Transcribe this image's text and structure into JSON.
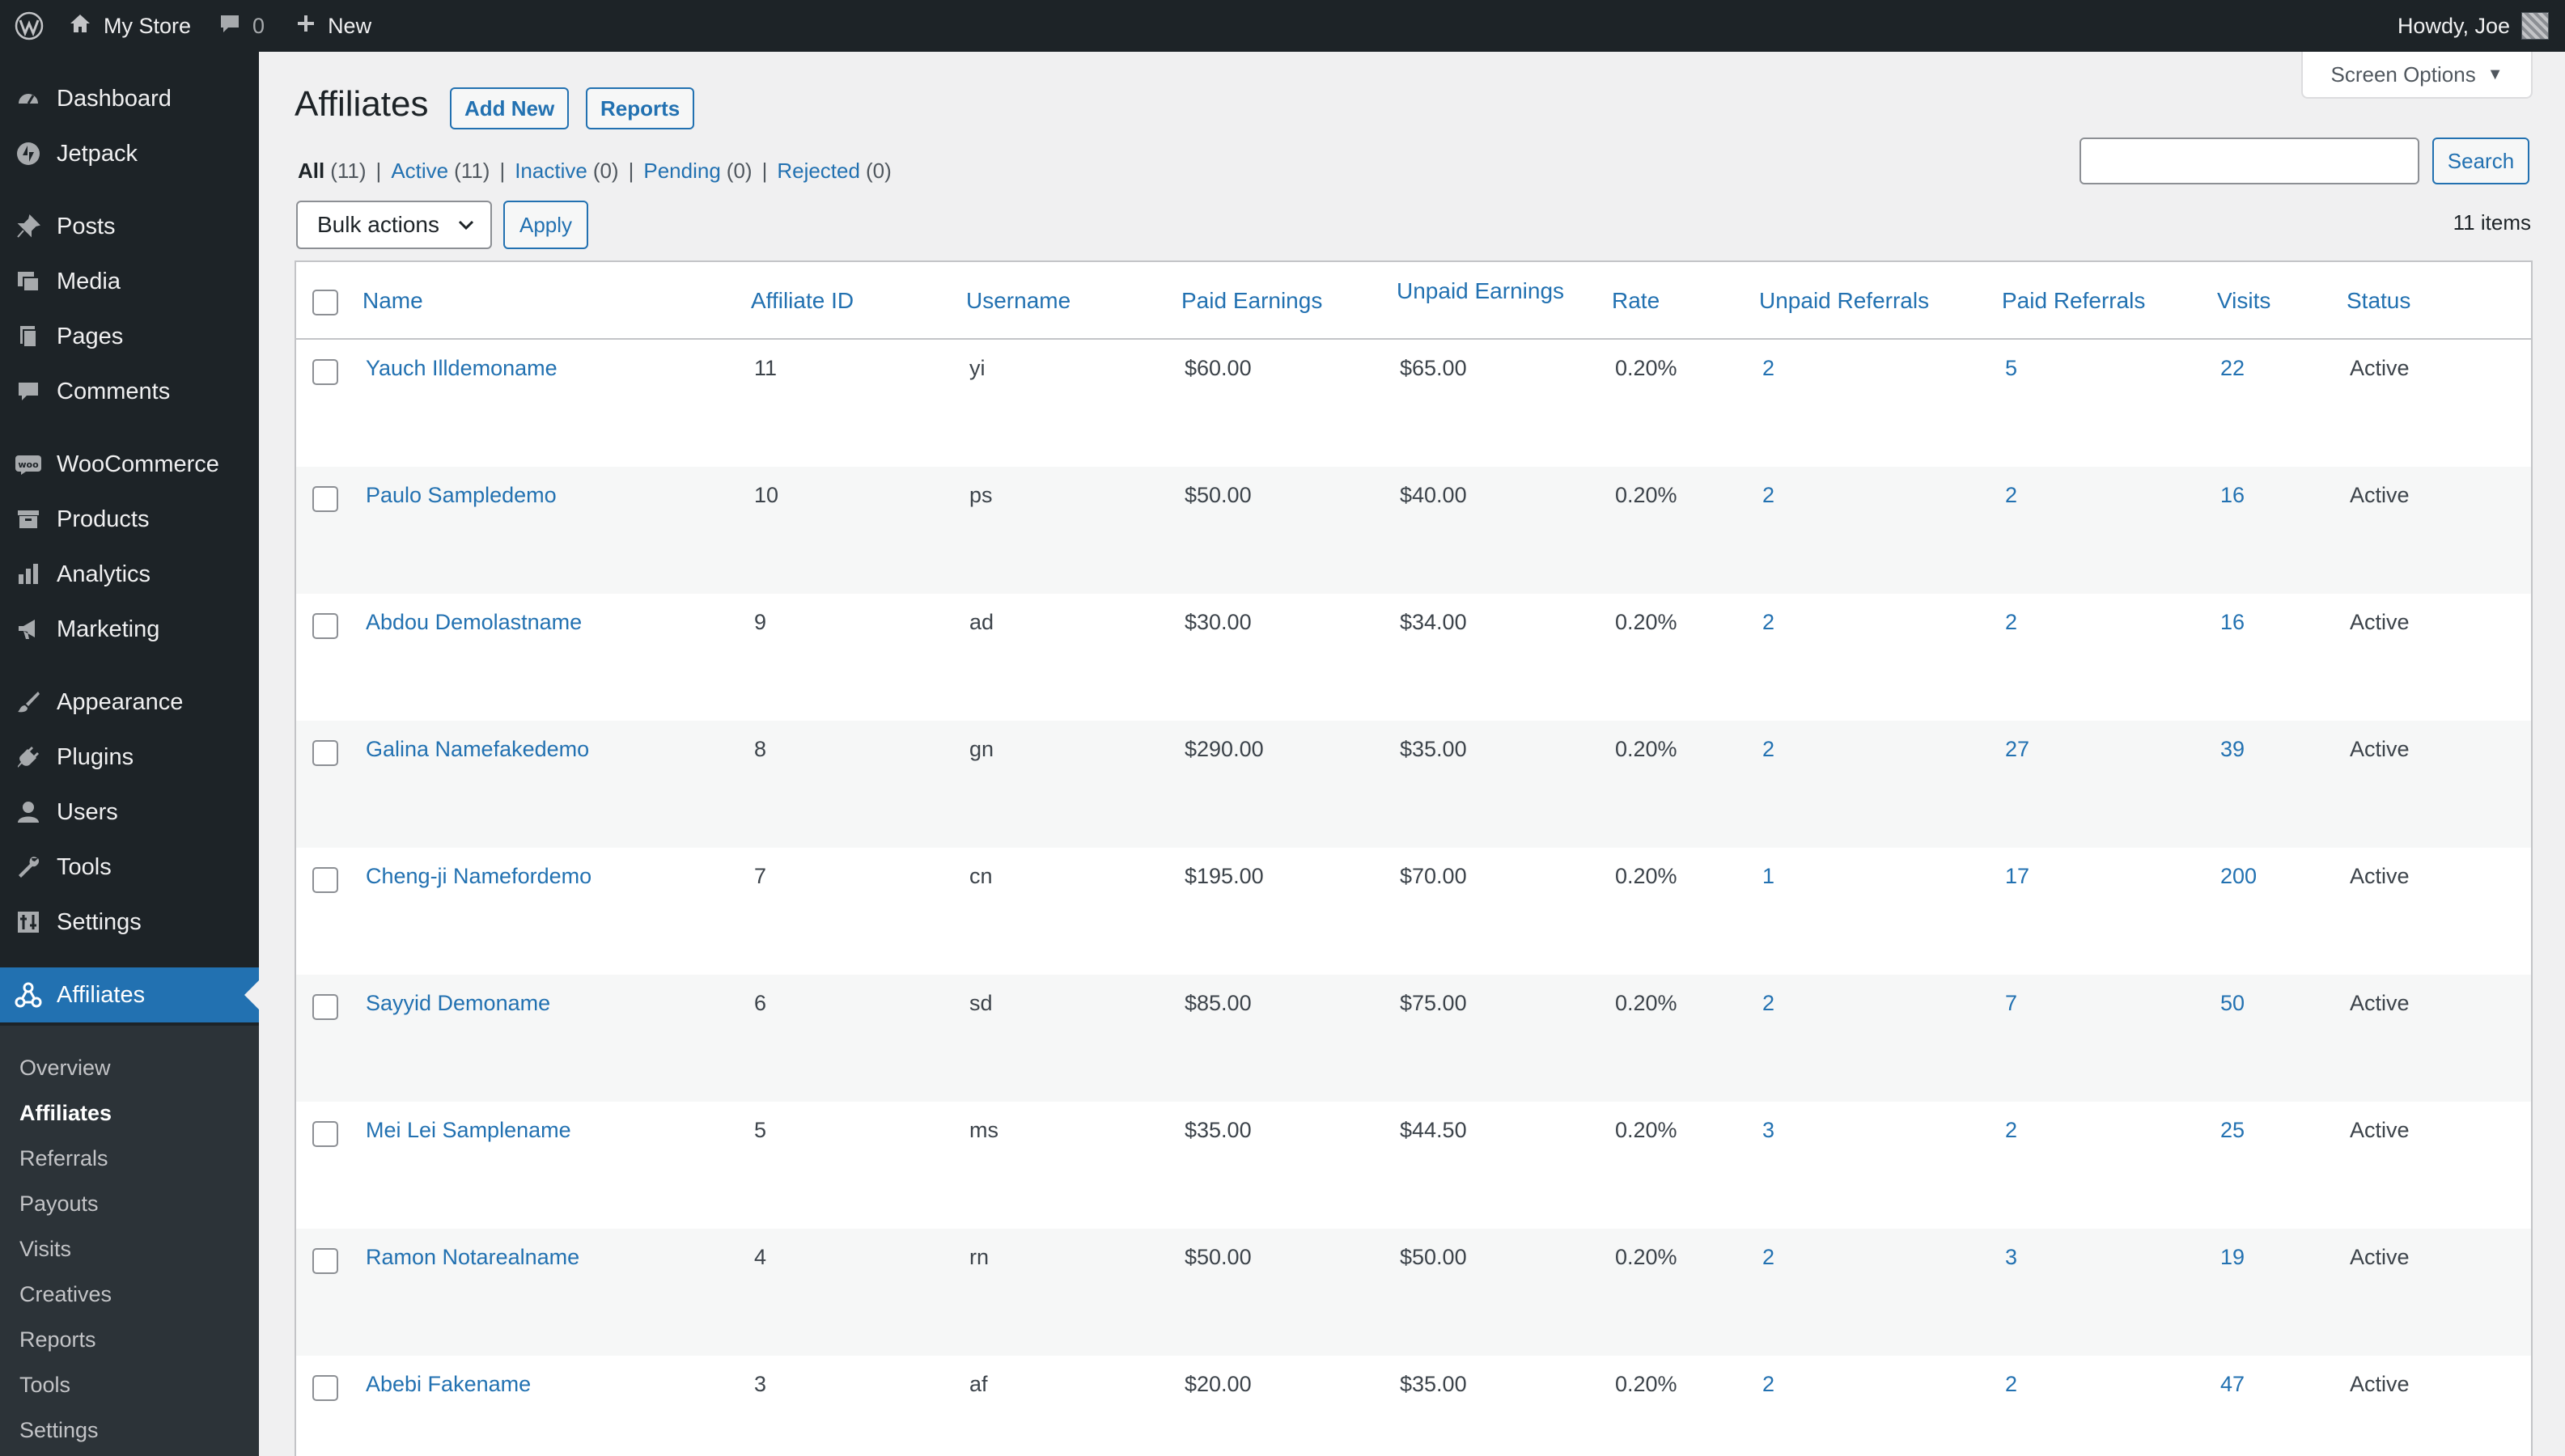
{
  "adminbar": {
    "site_name": "My Store",
    "comments_count": "0",
    "new_label": "New",
    "howdy": "Howdy, Joe"
  },
  "sidebar": {
    "items": [
      {
        "label": "Dashboard",
        "icon": "dashboard-icon"
      },
      {
        "label": "Jetpack",
        "icon": "jetpack-icon"
      },
      {
        "label": "Posts",
        "icon": "pin-icon"
      },
      {
        "label": "Media",
        "icon": "media-icon"
      },
      {
        "label": "Pages",
        "icon": "pages-icon"
      },
      {
        "label": "Comments",
        "icon": "comment-icon"
      },
      {
        "label": "WooCommerce",
        "icon": "woo-icon"
      },
      {
        "label": "Products",
        "icon": "archive-icon"
      },
      {
        "label": "Analytics",
        "icon": "bar-chart-icon"
      },
      {
        "label": "Marketing",
        "icon": "megaphone-icon"
      },
      {
        "label": "Appearance",
        "icon": "brush-icon"
      },
      {
        "label": "Plugins",
        "icon": "plug-icon"
      },
      {
        "label": "Users",
        "icon": "user-icon"
      },
      {
        "label": "Tools",
        "icon": "wrench-icon"
      },
      {
        "label": "Settings",
        "icon": "settings-icon"
      },
      {
        "label": "Affiliates",
        "icon": "affiliates-icon"
      }
    ],
    "submenu": [
      "Overview",
      "Affiliates",
      "Referrals",
      "Payouts",
      "Visits",
      "Creatives",
      "Reports",
      "Tools",
      "Settings"
    ]
  },
  "page": {
    "title": "Affiliates",
    "add_new": "Add New",
    "reports": "Reports",
    "screen_options": "Screen Options",
    "filters": [
      {
        "label": "All",
        "count": "(11)"
      },
      {
        "label": "Active",
        "count": "(11)"
      },
      {
        "label": "Inactive",
        "count": "(0)"
      },
      {
        "label": "Pending",
        "count": "(0)"
      },
      {
        "label": "Rejected",
        "count": "(0)"
      }
    ],
    "search_value": "",
    "search_button": "Search",
    "bulk_actions": "Bulk actions",
    "apply": "Apply",
    "items_count": "11 items"
  },
  "table": {
    "columns": [
      "Name",
      "Affiliate ID",
      "Username",
      "Paid Earnings",
      "Unpaid Earnings",
      "Rate",
      "Unpaid Referrals",
      "Paid Referrals",
      "Visits",
      "Status"
    ],
    "rows": [
      {
        "name": "Yauch Illdemoname",
        "id": "11",
        "username": "yi",
        "paid": "$60.00",
        "unpaid": "$65.00",
        "rate": "0.20%",
        "unpaid_refs": "2",
        "paid_refs": "5",
        "visits": "22",
        "status": "Active"
      },
      {
        "name": "Paulo Sampledemo",
        "id": "10",
        "username": "ps",
        "paid": "$50.00",
        "unpaid": "$40.00",
        "rate": "0.20%",
        "unpaid_refs": "2",
        "paid_refs": "2",
        "visits": "16",
        "status": "Active"
      },
      {
        "name": "Abdou Demolastname",
        "id": "9",
        "username": "ad",
        "paid": "$30.00",
        "unpaid": "$34.00",
        "rate": "0.20%",
        "unpaid_refs": "2",
        "paid_refs": "2",
        "visits": "16",
        "status": "Active"
      },
      {
        "name": "Galina Namefakedemo",
        "id": "8",
        "username": "gn",
        "paid": "$290.00",
        "unpaid": "$35.00",
        "rate": "0.20%",
        "unpaid_refs": "2",
        "paid_refs": "27",
        "visits": "39",
        "status": "Active"
      },
      {
        "name": "Cheng-ji Namefordemo",
        "id": "7",
        "username": "cn",
        "paid": "$195.00",
        "unpaid": "$70.00",
        "rate": "0.20%",
        "unpaid_refs": "1",
        "paid_refs": "17",
        "visits": "200",
        "status": "Active"
      },
      {
        "name": "Sayyid Demoname",
        "id": "6",
        "username": "sd",
        "paid": "$85.00",
        "unpaid": "$75.00",
        "rate": "0.20%",
        "unpaid_refs": "2",
        "paid_refs": "7",
        "visits": "50",
        "status": "Active"
      },
      {
        "name": "Mei Lei Samplename",
        "id": "5",
        "username": "ms",
        "paid": "$35.00",
        "unpaid": "$44.50",
        "rate": "0.20%",
        "unpaid_refs": "3",
        "paid_refs": "2",
        "visits": "25",
        "status": "Active"
      },
      {
        "name": "Ramon Notarealname",
        "id": "4",
        "username": "rn",
        "paid": "$50.00",
        "unpaid": "$50.00",
        "rate": "0.20%",
        "unpaid_refs": "2",
        "paid_refs": "3",
        "visits": "19",
        "status": "Active"
      },
      {
        "name": "Abebi Fakename",
        "id": "3",
        "username": "af",
        "paid": "$20.00",
        "unpaid": "$35.00",
        "rate": "0.20%",
        "unpaid_refs": "2",
        "paid_refs": "2",
        "visits": "47",
        "status": "Active"
      }
    ]
  }
}
